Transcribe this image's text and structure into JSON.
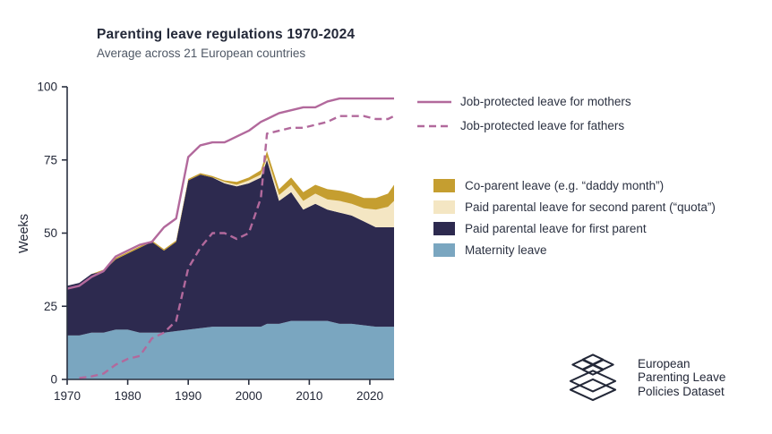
{
  "chart_data": {
    "type": "area",
    "title": "Parenting leave regulations 1970-2024",
    "subtitle": "Average across 21 European countries",
    "ylabel": "Weeks",
    "xlabel": "",
    "xlim": [
      1970,
      2024
    ],
    "ylim": [
      0,
      100
    ],
    "xticks": [
      1970,
      1980,
      1990,
      2000,
      2010,
      2020
    ],
    "yticks": [
      0,
      25,
      50,
      75,
      100
    ],
    "grid": false,
    "legend_position": "right",
    "years": [
      1970,
      1972,
      1974,
      1976,
      1978,
      1980,
      1982,
      1984,
      1986,
      1988,
      1990,
      1992,
      1994,
      1996,
      1998,
      2000,
      2002,
      2003,
      2005,
      2007,
      2009,
      2011,
      2013,
      2015,
      2017,
      2019,
      2021,
      2023,
      2024
    ],
    "areas": [
      {
        "name": "Maternity leave",
        "color": "#7aa6c0",
        "values": [
          15,
          15,
          16,
          16,
          17,
          17,
          16,
          16,
          16,
          16.5,
          17,
          17.5,
          18,
          18,
          18,
          18,
          18,
          19,
          19,
          20,
          20,
          20,
          20,
          19,
          19,
          18.5,
          18,
          18,
          18
        ]
      },
      {
        "name": "Paid parental leave for first parent",
        "color": "#2d2a4f",
        "values": [
          17,
          18,
          20,
          21,
          24,
          26,
          29,
          31,
          28,
          30.5,
          51,
          52.5,
          51,
          49,
          48,
          49,
          51,
          56,
          42,
          44,
          38,
          40,
          38,
          38,
          37,
          35.5,
          34,
          34,
          34
        ]
      },
      {
        "name": "Paid parental leave for second parent (“quota”)",
        "color": "#f4e6c3",
        "values": [
          0,
          0,
          0,
          0,
          0,
          0,
          0,
          0,
          0,
          0,
          0,
          0,
          0,
          0.5,
          0.5,
          1,
          1,
          1,
          2,
          2.5,
          3,
          3.5,
          3.5,
          4,
          4,
          4.5,
          6,
          7,
          9
        ]
      },
      {
        "name": "Co-parent leave (e.g. “daddy month”)",
        "color": "#c59e30",
        "values": [
          0,
          0,
          0,
          0.5,
          0.5,
          0.5,
          0.5,
          0.5,
          0.5,
          0.5,
          0.5,
          0.5,
          0.5,
          0.5,
          1,
          1,
          1.5,
          2,
          2,
          2.5,
          3,
          3,
          3.5,
          3.5,
          3.5,
          3.5,
          4,
          4.5,
          5.5
        ]
      }
    ],
    "lines": [
      {
        "name": "Job-protected leave for mothers",
        "dash": false,
        "color": "#b2699c",
        "values": [
          31,
          32,
          35,
          37,
          42,
          44,
          46,
          47,
          52,
          55,
          76,
          80,
          81,
          81,
          83,
          85,
          88,
          89,
          91,
          92,
          93,
          93,
          95,
          96,
          96,
          96,
          96,
          96,
          96
        ]
      },
      {
        "name": "Job-protected leave for fathers",
        "dash": true,
        "color": "#b2699c",
        "values": [
          null,
          0.5,
          1,
          2,
          5,
          7,
          8,
          14,
          16,
          20,
          38,
          45,
          50,
          50,
          48,
          50,
          62,
          84,
          85,
          86,
          86,
          87,
          88,
          90,
          90,
          90,
          89,
          89,
          90
        ]
      }
    ]
  },
  "logo": {
    "lines": [
      "European",
      "Parenting Leave",
      "Policies Dataset"
    ]
  }
}
